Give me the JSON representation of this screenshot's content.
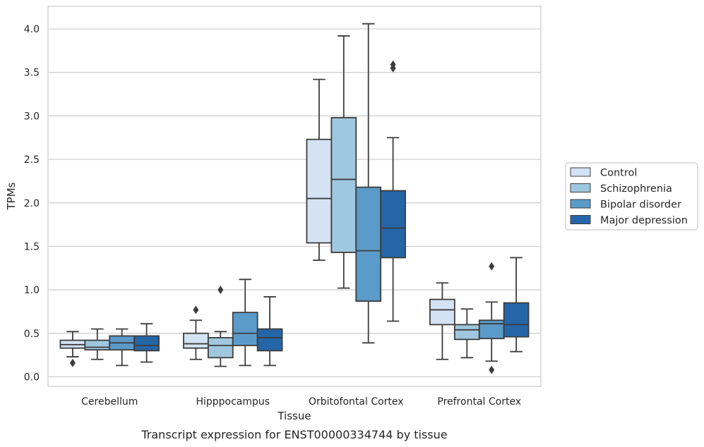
{
  "chart_data": {
    "type": "box",
    "title": "",
    "caption": "Transcript expression for ENST00000334744 by tissue",
    "xlabel": "Tissue",
    "ylabel": "TPMs",
    "ylim": [
      -0.11,
      4.26
    ],
    "yticks": [
      0.0,
      0.5,
      1.0,
      1.5,
      2.0,
      2.5,
      3.0,
      3.5,
      4.0
    ],
    "ytick_labels": [
      "0.0",
      "0.5",
      "1.0",
      "1.5",
      "2.0",
      "2.5",
      "3.0",
      "3.5",
      "4.0"
    ],
    "grid": "horizontal",
    "legend_placement": "right",
    "categories": [
      "Cerebellum",
      "Hipppocampus",
      "Orbitofontal Cortex",
      "Prefrontal Cortex"
    ],
    "series": [
      {
        "name": "Control",
        "color": "#d4e3f3",
        "boxes": [
          {
            "whislo": 0.23,
            "q1": 0.33,
            "med": 0.37,
            "q3": 0.42,
            "whishi": 0.52,
            "fliers": [
              0.16
            ]
          },
          {
            "whislo": 0.2,
            "q1": 0.33,
            "med": 0.38,
            "q3": 0.5,
            "whishi": 0.65,
            "fliers": [
              0.77
            ]
          },
          {
            "whislo": 1.34,
            "q1": 1.54,
            "med": 2.05,
            "q3": 2.73,
            "whishi": 3.42,
            "fliers": []
          },
          {
            "whislo": 0.2,
            "q1": 0.6,
            "med": 0.77,
            "q3": 0.89,
            "whishi": 1.08,
            "fliers": []
          }
        ]
      },
      {
        "name": "Schizophrenia",
        "color": "#9fc7df",
        "boxes": [
          {
            "whislo": 0.2,
            "q1": 0.31,
            "med": 0.34,
            "q3": 0.42,
            "whishi": 0.55,
            "fliers": []
          },
          {
            "whislo": 0.12,
            "q1": 0.22,
            "med": 0.36,
            "q3": 0.45,
            "whishi": 0.52,
            "fliers": [
              1.0
            ]
          },
          {
            "whislo": 1.02,
            "q1": 1.43,
            "med": 2.27,
            "q3": 2.98,
            "whishi": 3.92,
            "fliers": []
          },
          {
            "whislo": 0.22,
            "q1": 0.43,
            "med": 0.54,
            "q3": 0.6,
            "whishi": 0.78,
            "fliers": []
          }
        ]
      },
      {
        "name": "Bipolar disorder",
        "color": "#5b9bc9",
        "boxes": [
          {
            "whislo": 0.13,
            "q1": 0.31,
            "med": 0.39,
            "q3": 0.47,
            "whishi": 0.55,
            "fliers": []
          },
          {
            "whislo": 0.13,
            "q1": 0.36,
            "med": 0.5,
            "q3": 0.74,
            "whishi": 1.12,
            "fliers": []
          },
          {
            "whislo": 0.39,
            "q1": 0.87,
            "med": 1.45,
            "q3": 2.18,
            "whishi": 4.06,
            "fliers": []
          },
          {
            "whislo": 0.18,
            "q1": 0.44,
            "med": 0.61,
            "q3": 0.65,
            "whishi": 0.86,
            "fliers": [
              1.27,
              0.08
            ]
          }
        ]
      },
      {
        "name": "Major depression",
        "color": "#2566a8",
        "boxes": [
          {
            "whislo": 0.17,
            "q1": 0.3,
            "med": 0.36,
            "q3": 0.47,
            "whishi": 0.61,
            "fliers": []
          },
          {
            "whislo": 0.13,
            "q1": 0.3,
            "med": 0.45,
            "q3": 0.55,
            "whishi": 0.92,
            "fliers": []
          },
          {
            "whislo": 0.64,
            "q1": 1.37,
            "med": 1.71,
            "q3": 2.14,
            "whishi": 2.75,
            "fliers": [
              3.55,
              3.59
            ]
          },
          {
            "whislo": 0.29,
            "q1": 0.46,
            "med": 0.6,
            "q3": 0.85,
            "whishi": 1.37,
            "fliers": []
          }
        ]
      }
    ]
  }
}
